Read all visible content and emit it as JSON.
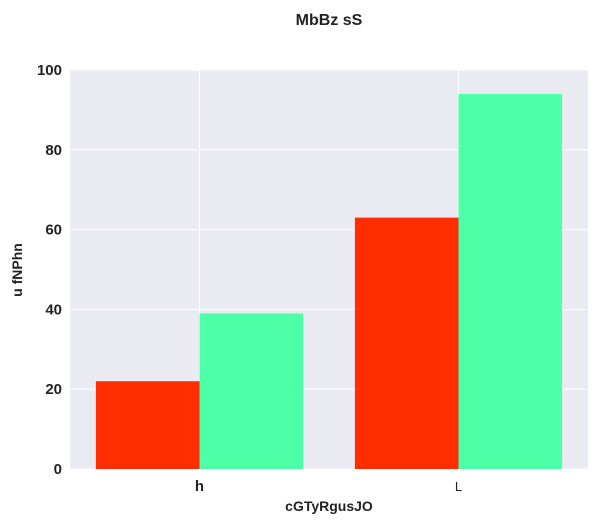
{
  "chart_data": {
    "type": "bar",
    "title": "MbBz  sS",
    "xlabel": "cGTyRgusJO",
    "ylabel": "u fNPhn",
    "categories": [
      "h",
      "L"
    ],
    "series": [
      {
        "values": [
          22,
          63
        ],
        "color": "#ff2d00"
      },
      {
        "values": [
          39,
          94
        ],
        "color": "#4dffa6"
      }
    ],
    "ylim": [
      0,
      100
    ],
    "yticks": [
      "0",
      "20",
      "40",
      "60",
      "80",
      "100"
    ],
    "grid": true,
    "plot_background": "#eaeaf2",
    "grid_color": "#ffffff"
  }
}
